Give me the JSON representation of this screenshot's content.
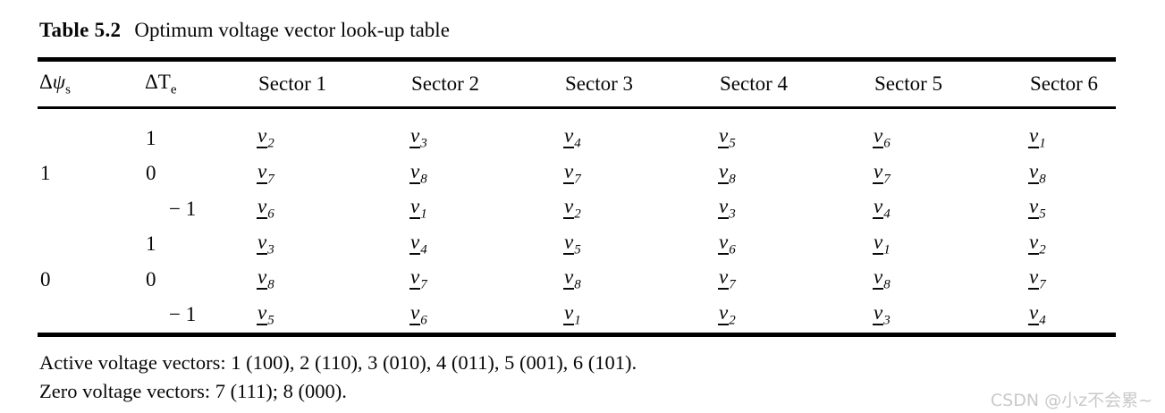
{
  "caption": {
    "label": "Table 5.2",
    "text": "Optimum voltage vector look-up table"
  },
  "table": {
    "headers": {
      "flux": {
        "prefix": "Δ",
        "symbol": "ψ",
        "sub": "s"
      },
      "torque": {
        "prefix": "ΔT",
        "symbol": "",
        "sub": "e"
      },
      "sectors": [
        "Sector 1",
        "Sector 2",
        "Sector 3",
        "Sector 4",
        "Sector 5",
        "Sector 6"
      ]
    },
    "vector_symbol": "v",
    "rows": [
      {
        "flux": "",
        "torque": "1",
        "vectors": [
          "2",
          "3",
          "4",
          "5",
          "6",
          "1"
        ]
      },
      {
        "flux": "1",
        "torque": "0",
        "vectors": [
          "7",
          "8",
          "7",
          "8",
          "7",
          "8"
        ]
      },
      {
        "flux": "",
        "torque": "− 1",
        "vectors": [
          "6",
          "1",
          "2",
          "3",
          "4",
          "5"
        ]
      },
      {
        "flux": "",
        "torque": "1",
        "vectors": [
          "3",
          "4",
          "5",
          "6",
          "1",
          "2"
        ]
      },
      {
        "flux": "0",
        "torque": "0",
        "vectors": [
          "8",
          "7",
          "8",
          "7",
          "8",
          "7"
        ]
      },
      {
        "flux": "",
        "torque": "− 1",
        "vectors": [
          "5",
          "6",
          "1",
          "2",
          "3",
          "4"
        ]
      }
    ]
  },
  "footnotes": [
    "Active voltage vectors: 1 (100), 2 (110), 3 (010), 4 (011), 5 (001), 6 (101).",
    "Zero voltage vectors: 7 (111); 8 (000)."
  ],
  "watermark": "CSDN @小z不会累~"
}
